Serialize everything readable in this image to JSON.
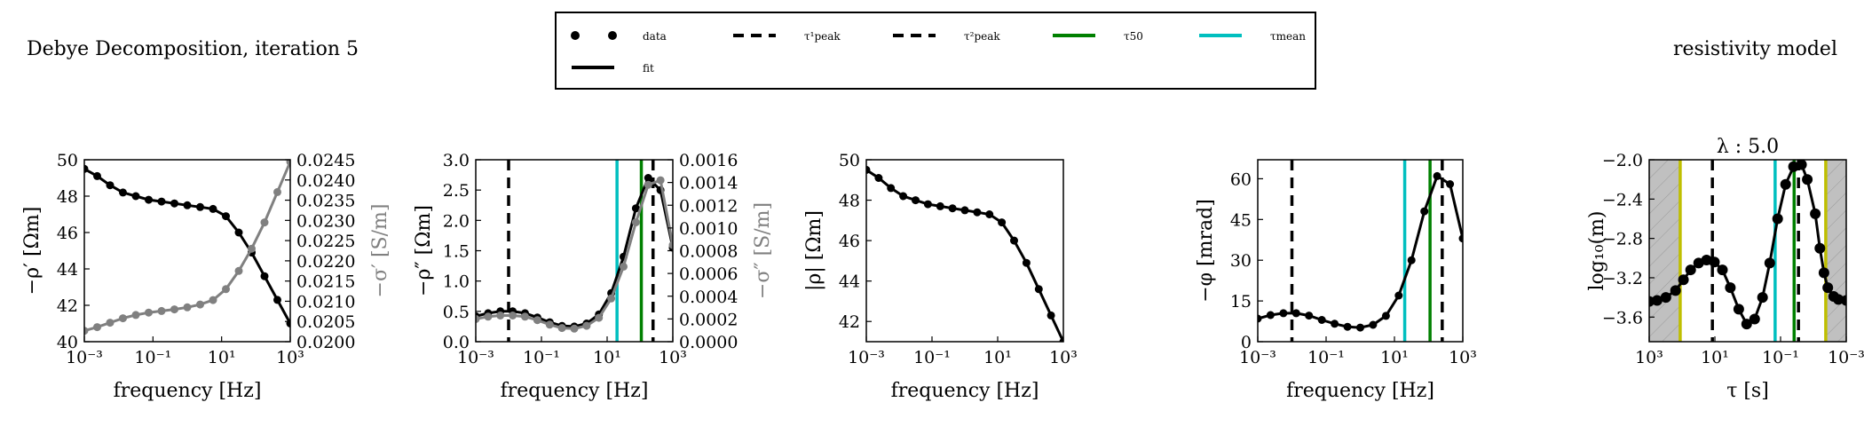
{
  "figure": {
    "title_left": "Debye Decomposition, iteration 5",
    "title_right": "resistivity model"
  },
  "legend": {
    "entries": [
      {
        "label": "data",
        "style": "dots",
        "color": "#000000"
      },
      {
        "label": "τ¹peak",
        "style": "dashed",
        "color": "#000000"
      },
      {
        "label": "τ²peak",
        "style": "dashed",
        "color": "#000000"
      },
      {
        "label": "τ50",
        "style": "solid",
        "color": "#008000"
      },
      {
        "label": "τmean",
        "style": "solid",
        "color": "#00bfbf"
      },
      {
        "label": "fit",
        "style": "solid",
        "color": "#000000"
      }
    ]
  },
  "chart_data": [
    {
      "type": "line",
      "xlabel": "frequency [Hz]",
      "ylabel": "−ρ′ [Ωm]",
      "ylabel_right": "−σ′ [S/m]",
      "xscale": "log",
      "xlim": [
        0.001,
        1000
      ],
      "ylim": [
        40,
        50
      ],
      "ylim_right": [
        0.02,
        0.0245
      ],
      "xticks": [
        "10⁻³",
        "10⁻¹",
        "10¹",
        "10³"
      ],
      "yticks": [
        "40",
        "42",
        "44",
        "46",
        "48",
        "50"
      ],
      "yticks_right": [
        "0.0200",
        "0.0205",
        "0.0210",
        "0.0215",
        "0.0220",
        "0.0225",
        "0.0230",
        "0.0235",
        "0.0240",
        "0.0245"
      ],
      "x": [
        0.001,
        0.00237,
        0.00562,
        0.0133,
        0.0316,
        0.075,
        0.178,
        0.422,
        1.0,
        2.37,
        5.62,
        13.3,
        31.6,
        75.0,
        178,
        422,
        1000
      ],
      "series": [
        {
          "axis": "left",
          "color": "#000000",
          "values": [
            49.5,
            49.1,
            48.6,
            48.2,
            48.0,
            47.8,
            47.7,
            47.6,
            47.5,
            47.4,
            47.3,
            46.9,
            46.0,
            44.9,
            43.6,
            42.3,
            41.0
          ]
        },
        {
          "axis": "right",
          "color": "#808080",
          "values": [
            0.02027,
            0.02036,
            0.02047,
            0.02058,
            0.02066,
            0.02072,
            0.02076,
            0.0208,
            0.02085,
            0.02092,
            0.02103,
            0.0213,
            0.02175,
            0.0223,
            0.02295,
            0.0237,
            0.02445
          ]
        }
      ]
    },
    {
      "type": "line",
      "xlabel": "frequency [Hz]",
      "ylabel": "−ρ″ [Ωm]",
      "ylabel_right": "−σ″ [S/m]",
      "xscale": "log",
      "xlim": [
        0.001,
        1000
      ],
      "ylim": [
        0,
        3
      ],
      "ylim_right": [
        0,
        0.0016
      ],
      "xticks": [
        "10⁻³",
        "10⁻¹",
        "10¹",
        "10³"
      ],
      "yticks": [
        "0.0",
        "0.5",
        "1.0",
        "1.5",
        "2.0",
        "2.5",
        "3.0"
      ],
      "yticks_right": [
        "0.0000",
        "0.0002",
        "0.0004",
        "0.0006",
        "0.0008",
        "0.0010",
        "0.0012",
        "0.0014",
        "0.0016"
      ],
      "x": [
        0.001,
        0.00237,
        0.00562,
        0.0133,
        0.0316,
        0.075,
        0.178,
        0.422,
        1.0,
        2.37,
        5.62,
        13.3,
        31.6,
        75.0,
        178,
        422,
        1000
      ],
      "series": [
        {
          "axis": "left",
          "color": "#000000",
          "values": [
            0.42,
            0.47,
            0.5,
            0.5,
            0.47,
            0.4,
            0.32,
            0.26,
            0.25,
            0.3,
            0.45,
            0.8,
            1.4,
            2.2,
            2.7,
            2.5,
            1.55
          ]
        },
        {
          "axis": "right",
          "color": "#808080",
          "values": [
            0.0002,
            0.00022,
            0.00023,
            0.00023,
            0.00022,
            0.00019,
            0.00015,
            0.00012,
            0.000115,
            0.00014,
            0.00021,
            0.00038,
            0.00066,
            0.00105,
            0.00138,
            0.00142,
            0.00085
          ]
        }
      ],
      "vlines": [
        {
          "x": 0.01,
          "style": "dashed",
          "color": "#000000"
        },
        {
          "x": 20,
          "style": "solid",
          "color": "#00bfbf"
        },
        {
          "x": 110,
          "style": "solid",
          "color": "#008000"
        },
        {
          "x": 250,
          "style": "dashed",
          "color": "#000000"
        }
      ]
    },
    {
      "type": "line",
      "xlabel": "frequency [Hz]",
      "ylabel": "|ρ| [Ωm]",
      "xscale": "log",
      "xlim": [
        0.001,
        1000
      ],
      "ylim": [
        41,
        50
      ],
      "xticks": [
        "10⁻³",
        "10⁻¹",
        "10¹",
        "10³"
      ],
      "yticks": [
        "42",
        "44",
        "46",
        "48",
        "50"
      ],
      "x": [
        0.001,
        0.00237,
        0.00562,
        0.0133,
        0.0316,
        0.075,
        0.178,
        0.422,
        1.0,
        2.37,
        5.62,
        13.3,
        31.6,
        75.0,
        178,
        422,
        1000
      ],
      "series": [
        {
          "axis": "left",
          "color": "#000000",
          "values": [
            49.5,
            49.1,
            48.6,
            48.2,
            48.0,
            47.8,
            47.7,
            47.6,
            47.5,
            47.4,
            47.3,
            46.9,
            46.0,
            44.9,
            43.6,
            42.3,
            41.0
          ]
        }
      ]
    },
    {
      "type": "line",
      "xlabel": "frequency [Hz]",
      "ylabel": "−φ [mrad]",
      "xscale": "log",
      "xlim": [
        0.001,
        1000
      ],
      "ylim": [
        0,
        67
      ],
      "xticks": [
        "10⁻³",
        "10⁻¹",
        "10¹",
        "10³"
      ],
      "yticks": [
        "0",
        "15",
        "30",
        "45",
        "60"
      ],
      "x": [
        0.001,
        0.00237,
        0.00562,
        0.0133,
        0.0316,
        0.075,
        0.178,
        0.422,
        1.0,
        2.37,
        5.62,
        13.3,
        31.6,
        75.0,
        178,
        422,
        1000
      ],
      "series": [
        {
          "axis": "left",
          "color": "#000000",
          "values": [
            8.5,
            9.8,
            10.5,
            10.5,
            9.6,
            8.0,
            6.6,
            5.5,
            5.2,
            6.2,
            9.5,
            17.0,
            30.0,
            48.0,
            61.0,
            58.0,
            38.0
          ]
        }
      ],
      "vlines": [
        {
          "x": 0.01,
          "style": "dashed",
          "color": "#000000"
        },
        {
          "x": 20,
          "style": "solid",
          "color": "#00bfbf"
        },
        {
          "x": 110,
          "style": "solid",
          "color": "#008000"
        },
        {
          "x": 250,
          "style": "dashed",
          "color": "#000000"
        }
      ]
    },
    {
      "type": "line",
      "title": "λ : 5.0",
      "xlabel": "τ [s]",
      "ylabel": "log₁₀(m)",
      "xscale": "log",
      "xreversed": true,
      "xlim": [
        3000,
        0.0001
      ],
      "ylim": [
        -3.85,
        -2.0
      ],
      "xticks": [
        "10³",
        "10¹",
        "10⁻¹",
        "10⁻³"
      ],
      "yticks": [
        "−2.0",
        "−2.4",
        "−2.8",
        "−3.2",
        "−3.6"
      ],
      "shaded_regions": [
        [
          3000,
          200
        ],
        [
          0.0006,
          0.0001
        ]
      ],
      "x": [
        3000,
        1500,
        700,
        300,
        150,
        80,
        40,
        20,
        10,
        5,
        2.5,
        1.2,
        0.6,
        0.3,
        0.15,
        0.08,
        0.04,
        0.02,
        0.01,
        0.005,
        0.003,
        0.0015,
        0.001,
        0.0007,
        0.0005,
        0.0003,
        0.0002,
        0.0001
      ],
      "series": [
        {
          "axis": "left",
          "color": "#000000",
          "values": [
            -3.44,
            -3.43,
            -3.4,
            -3.33,
            -3.22,
            -3.12,
            -3.05,
            -3.02,
            -3.04,
            -3.12,
            -3.3,
            -3.52,
            -3.67,
            -3.62,
            -3.4,
            -3.05,
            -2.6,
            -2.25,
            -2.07,
            -2.05,
            -2.2,
            -2.55,
            -2.9,
            -3.15,
            -3.3,
            -3.39,
            -3.42,
            -3.43
          ]
        }
      ],
      "vlines": [
        {
          "x": 200,
          "style": "solid",
          "color": "#bfbf00"
        },
        {
          "x": 12,
          "style": "dashed",
          "color": "#000000"
        },
        {
          "x": 0.05,
          "style": "solid",
          "color": "#00bfbf"
        },
        {
          "x": 0.0095,
          "style": "solid",
          "color": "#008000"
        },
        {
          "x": 0.0065,
          "style": "dashed",
          "color": "#000000"
        },
        {
          "x": 0.0006,
          "style": "solid",
          "color": "#bfbf00"
        }
      ]
    }
  ]
}
